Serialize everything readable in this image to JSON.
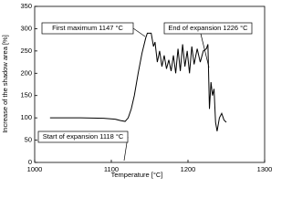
{
  "chart_data": {
    "type": "line",
    "x_label": "Temperature [°C]",
    "y_label": "Increase of the shadow area [%]",
    "annotations": [
      {
        "text": "First maximum 1147 °C"
      },
      {
        "text": "End of expansion 1226 °C"
      },
      {
        "text": "Start of expansion 1118 °C"
      }
    ],
    "xlim": [
      1000,
      1300
    ],
    "xticks": [
      1000,
      1100,
      1200,
      1300
    ],
    "ylim": [
      0,
      350
    ],
    "yticks": [
      0,
      50,
      100,
      150,
      200,
      250,
      300,
      350
    ],
    "grid": false,
    "series": [
      {
        "color": "#000000",
        "x": [
          1020,
          1060,
          1090,
          1105,
          1112,
          1118,
          1122,
          1126,
          1130,
          1135,
          1140,
          1145,
          1147,
          1152,
          1155,
          1157,
          1160,
          1163,
          1166,
          1169,
          1172,
          1175,
          1178,
          1181,
          1184,
          1187,
          1190,
          1193,
          1196,
          1199,
          1202,
          1205,
          1208,
          1212,
          1216,
          1220,
          1224,
          1226,
          1228,
          1230,
          1232,
          1234,
          1236,
          1238,
          1241,
          1244,
          1247,
          1250
        ],
        "values": [
          100,
          100,
          99,
          97,
          94,
          92,
          100,
          120,
          150,
          200,
          245,
          280,
          290,
          290,
          260,
          270,
          225,
          250,
          215,
          240,
          210,
          230,
          205,
          240,
          200,
          255,
          205,
          265,
          215,
          250,
          200,
          260,
          220,
          255,
          225,
          250,
          255,
          265,
          120,
          180,
          150,
          165,
          90,
          70,
          100,
          110,
          95,
          90
        ]
      }
    ]
  }
}
